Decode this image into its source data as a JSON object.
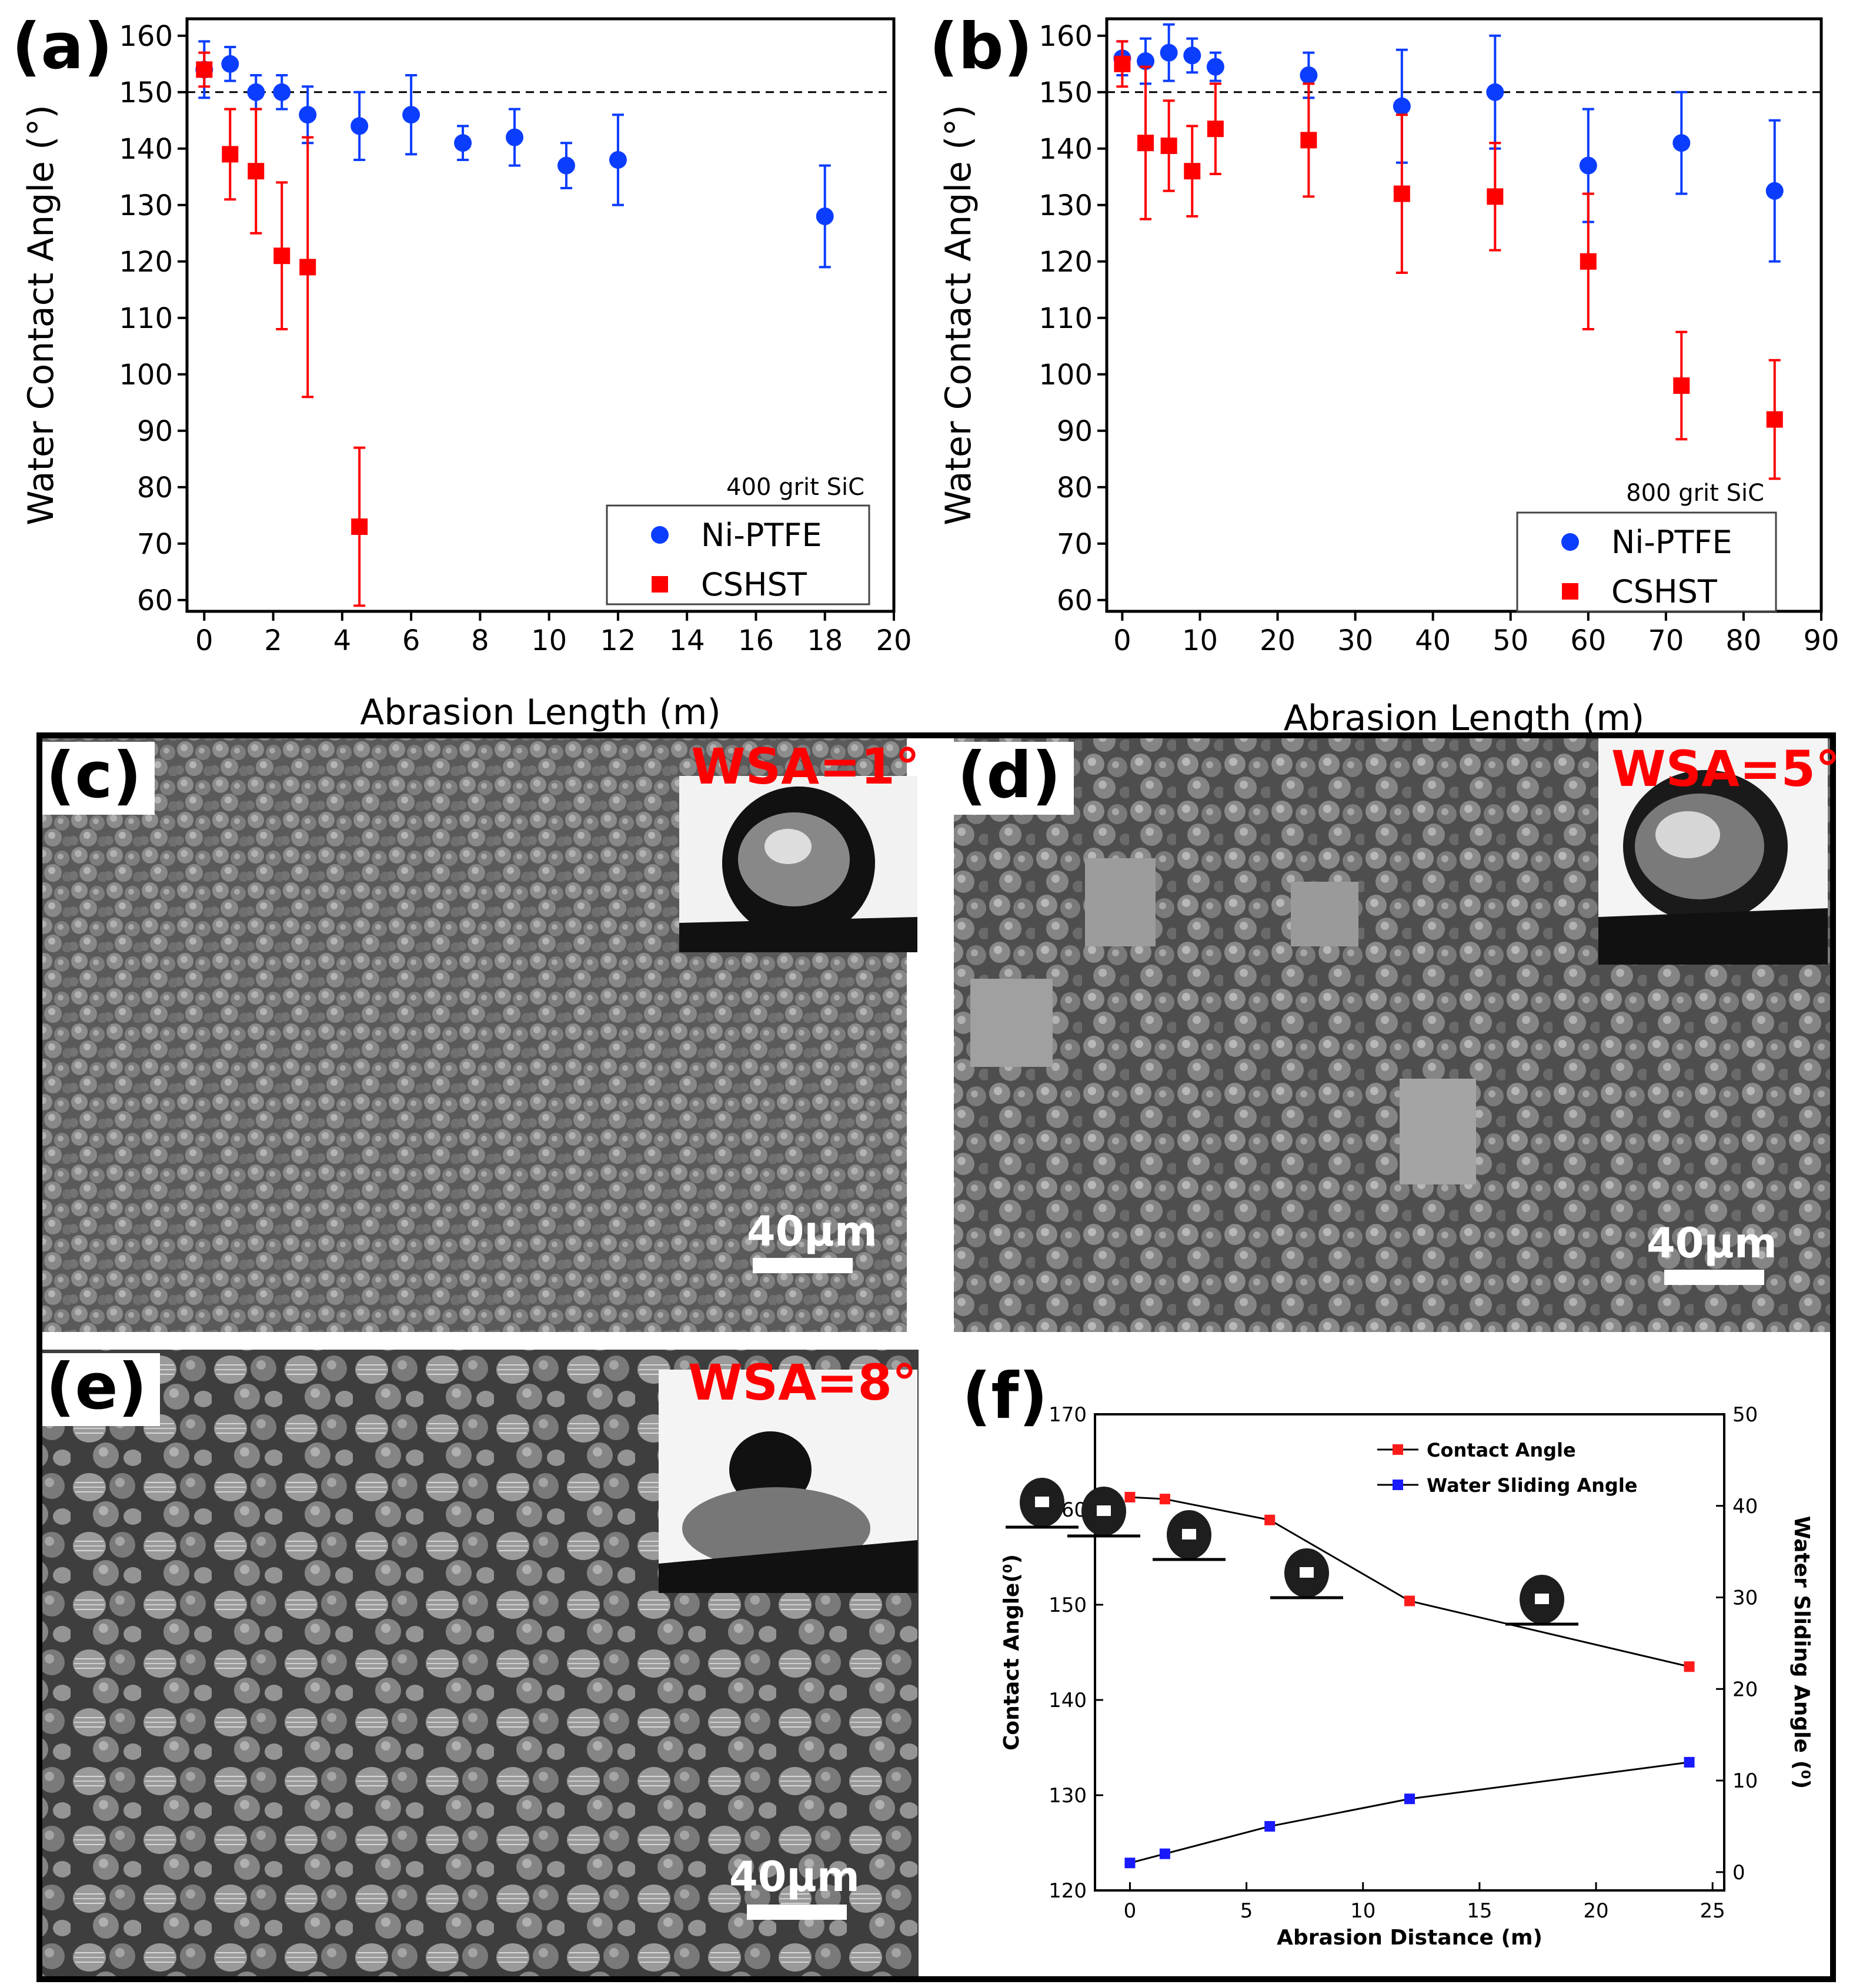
{
  "panel_labels": {
    "a": "(a)",
    "b": "(b)",
    "c": "(c)",
    "d": "(d)",
    "e": "(e)",
    "f": "(f)"
  },
  "colors": {
    "ni_ptfe": "#0b3dff",
    "cshst": "#ff0000",
    "contact_angle": "#ff1a1a",
    "sliding_angle": "#1a1aff",
    "wsa_text": "#ff0000"
  },
  "sem_panels": {
    "c": {
      "wsa_label": "WSA=1°",
      "scale_label": "40μm"
    },
    "d": {
      "wsa_label": "WSA=5°",
      "scale_label": "40μm"
    },
    "e": {
      "wsa_label": "WSA=8°",
      "scale_label": "40μm"
    }
  },
  "chart_data": [
    {
      "id": "a",
      "type": "scatter",
      "title": "",
      "xlabel": "Abrasion Length (m)",
      "ylabel": "Water Contact Angle (°)",
      "xlim": [
        -0.5,
        20
      ],
      "ylim": [
        58,
        163
      ],
      "xticks": [
        "0",
        "2",
        "4",
        "6",
        "8",
        "10",
        "12",
        "14",
        "16",
        "18",
        "20"
      ],
      "yticks": [
        "60",
        "70",
        "80",
        "90",
        "100",
        "110",
        "120",
        "130",
        "140",
        "150",
        "160"
      ],
      "reference_line": 150,
      "annotation": "400 grit SiC",
      "series": [
        {
          "name": "Ni-PTFE",
          "marker": "circle",
          "x": [
            0,
            0.75,
            1.5,
            2.25,
            3,
            4.5,
            6,
            7.5,
            9,
            10.5,
            12,
            18
          ],
          "y": [
            154,
            155,
            150,
            150,
            146,
            144,
            146,
            141,
            142,
            137,
            138,
            128
          ],
          "err": [
            5,
            3,
            3,
            3,
            5,
            6,
            7,
            3,
            5,
            4,
            8,
            9
          ]
        },
        {
          "name": "CSHST",
          "marker": "square",
          "x": [
            0,
            0.75,
            1.5,
            2.25,
            3,
            4.5
          ],
          "y": [
            154,
            139,
            136,
            121,
            119,
            73
          ],
          "err": [
            3,
            8,
            11,
            13,
            23,
            14
          ]
        }
      ]
    },
    {
      "id": "b",
      "type": "scatter",
      "title": "",
      "xlabel": "Abrasion Length (m)",
      "ylabel": "Water Contact Angle (°)",
      "xlim": [
        -2,
        90
      ],
      "ylim": [
        58,
        163
      ],
      "xticks": [
        "0",
        "10",
        "20",
        "30",
        "40",
        "50",
        "60",
        "70",
        "80",
        "90"
      ],
      "yticks": [
        "60",
        "70",
        "80",
        "90",
        "100",
        "110",
        "120",
        "130",
        "140",
        "150",
        "160"
      ],
      "reference_line": 150,
      "annotation": "800 grit SiC",
      "series": [
        {
          "name": "Ni-PTFE",
          "marker": "circle",
          "x": [
            0,
            3,
            6,
            9,
            12,
            24,
            36,
            48,
            60,
            72,
            84
          ],
          "y": [
            156,
            155.5,
            157,
            156.5,
            154.5,
            153,
            147.5,
            150,
            137,
            141,
            132.5
          ],
          "err": [
            3,
            4,
            5,
            3,
            2.5,
            4,
            10,
            10,
            10,
            9,
            12.5
          ]
        },
        {
          "name": "CSHST",
          "marker": "square",
          "x": [
            0,
            3,
            6,
            9,
            12,
            24,
            36,
            48,
            60,
            72,
            84
          ],
          "y": [
            155,
            141,
            140.5,
            136,
            143.5,
            141.5,
            132,
            131.5,
            120,
            98,
            92
          ],
          "err": [
            4,
            13.5,
            8,
            8,
            8,
            10,
            14,
            9.5,
            12,
            9.5,
            10.5
          ]
        }
      ]
    },
    {
      "id": "f",
      "type": "line",
      "title": "",
      "xlabel": "Abrasion Distance (m)",
      "ylabel": "Contact Angle(⁰)",
      "ylabel_right": "Water Sliding Angle (⁰)",
      "xlim": [
        -1.5,
        25.5
      ],
      "ylim": [
        120,
        170
      ],
      "ylim_right": [
        -2,
        50
      ],
      "xticks": [
        "0",
        "5",
        "10",
        "15",
        "20",
        "25"
      ],
      "yticks": [
        "120",
        "130",
        "140",
        "150",
        "160",
        "170"
      ],
      "yticks_right": [
        "0",
        "10",
        "20",
        "30",
        "40",
        "50"
      ],
      "series": [
        {
          "name": "Contact Angle",
          "axis": "left",
          "x": [
            0,
            1.5,
            6,
            12,
            24
          ],
          "y": [
            161.3,
            161.1,
            158.9,
            150.4,
            143.5
          ]
        },
        {
          "name": "Water Sliding Angle",
          "axis": "right",
          "x": [
            0,
            1.5,
            6,
            12,
            24
          ],
          "y": [
            1,
            2,
            5,
            8,
            12
          ]
        }
      ]
    }
  ]
}
